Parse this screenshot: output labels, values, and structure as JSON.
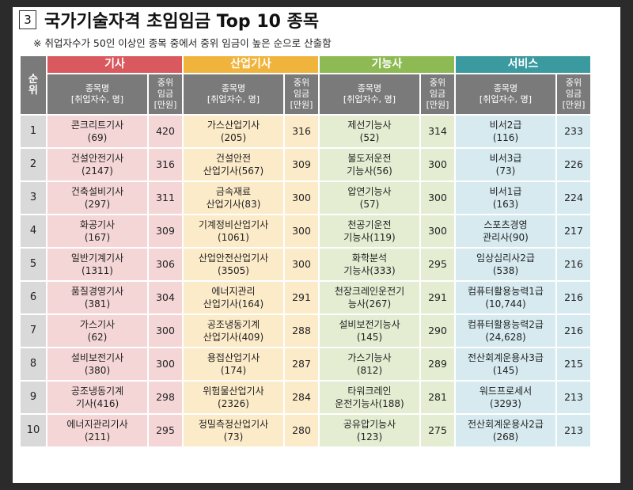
{
  "header": {
    "number": "3",
    "title": "국가기술자격 초임임금 Top 10 종목",
    "note": "※ 취업자수가 50인 이상인 종목 중에서 중위 임금이 높은 순으로 산출함"
  },
  "table": {
    "rank_header": "순\n위",
    "categories": [
      "기사",
      "산업기사",
      "기능사",
      "서비스"
    ],
    "col_name_header": "종목명\n[취업자수, 명]",
    "col_wage_header": "중위\n임금\n[만원]",
    "rows": [
      {
        "rank": "1",
        "gisa": {
          "name": "콘크리트기사\n(69)",
          "wage": "420"
        },
        "sanup": {
          "name": "가스산업기사\n(205)",
          "wage": "316"
        },
        "gineung": {
          "name": "제선기능사\n(52)",
          "wage": "314"
        },
        "service": {
          "name": "비서2급\n(116)",
          "wage": "233"
        }
      },
      {
        "rank": "2",
        "gisa": {
          "name": "건설안전기사\n(2147)",
          "wage": "316"
        },
        "sanup": {
          "name": "건설안전\n산업기사(567)",
          "wage": "309"
        },
        "gineung": {
          "name": "불도저운전\n기능사(56)",
          "wage": "300"
        },
        "service": {
          "name": "비서3급\n(73)",
          "wage": "226"
        }
      },
      {
        "rank": "3",
        "gisa": {
          "name": "건축설비기사\n(297)",
          "wage": "311"
        },
        "sanup": {
          "name": "금속재료\n산업기사(83)",
          "wage": "300"
        },
        "gineung": {
          "name": "압연기능사\n(57)",
          "wage": "300"
        },
        "service": {
          "name": "비서1급\n(163)",
          "wage": "224"
        }
      },
      {
        "rank": "4",
        "gisa": {
          "name": "화공기사\n(167)",
          "wage": "309"
        },
        "sanup": {
          "name": "기계정비산업기사\n(1061)",
          "wage": "300"
        },
        "gineung": {
          "name": "천공기운전\n기능사(119)",
          "wage": "300"
        },
        "service": {
          "name": "스포츠경영\n관리사(90)",
          "wage": "217"
        }
      },
      {
        "rank": "5",
        "gisa": {
          "name": "일반기계기사\n(1311)",
          "wage": "306"
        },
        "sanup": {
          "name": "산업안전산업기사\n(3505)",
          "wage": "300"
        },
        "gineung": {
          "name": "화학분석\n기능사(333)",
          "wage": "295"
        },
        "service": {
          "name": "임상심리사2급\n(538)",
          "wage": "216"
        }
      },
      {
        "rank": "6",
        "gisa": {
          "name": "품질경영기사\n(381)",
          "wage": "304"
        },
        "sanup": {
          "name": "에너지관리\n산업기사(164)",
          "wage": "291"
        },
        "gineung": {
          "name": "천장크레인운전기\n능사(267)",
          "wage": "291"
        },
        "service": {
          "name": "컴퓨터활용능력1급\n(10,744)",
          "wage": "216"
        }
      },
      {
        "rank": "7",
        "gisa": {
          "name": "가스기사\n(62)",
          "wage": "300"
        },
        "sanup": {
          "name": "공조냉동기계\n산업기사(409)",
          "wage": "288"
        },
        "gineung": {
          "name": "설비보전기능사\n(145)",
          "wage": "290"
        },
        "service": {
          "name": "컴퓨터활용능력2급\n(24,628)",
          "wage": "216"
        }
      },
      {
        "rank": "8",
        "gisa": {
          "name": "설비보전기사\n(380)",
          "wage": "300"
        },
        "sanup": {
          "name": "용접산업기사\n(174)",
          "wage": "287"
        },
        "gineung": {
          "name": "가스기능사\n(812)",
          "wage": "289"
        },
        "service": {
          "name": "전산회계운용사3급\n(145)",
          "wage": "215"
        }
      },
      {
        "rank": "9",
        "gisa": {
          "name": "공조냉동기계\n기사(416)",
          "wage": "298"
        },
        "sanup": {
          "name": "위험물산업기사\n(2326)",
          "wage": "284"
        },
        "gineung": {
          "name": "타워크레인\n운전기능사(188)",
          "wage": "281"
        },
        "service": {
          "name": "워드프로세서\n(3293)",
          "wage": "213"
        }
      },
      {
        "rank": "10",
        "gisa": {
          "name": "에너지관리기사\n(211)",
          "wage": "295"
        },
        "sanup": {
          "name": "정밀측정산업기사\n(73)",
          "wage": "280"
        },
        "gineung": {
          "name": "공유압기능사\n(123)",
          "wage": "275"
        },
        "service": {
          "name": "전산회계운용사2급\n(268)",
          "wage": "213"
        }
      }
    ]
  },
  "colors": {
    "gisa_header": "#d9595f",
    "sanup_header": "#f0b43c",
    "gineung_header": "#8dba53",
    "service_header": "#3a9aa0"
  }
}
